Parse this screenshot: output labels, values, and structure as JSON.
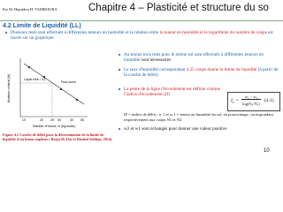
{
  "header": {
    "author": "Par Dr Hamidou H. TAMBOURA",
    "title": "Chapitre 4 – Plasticité et structure du so"
  },
  "section": {
    "heading": "4.2 Limite de Liquidité (LL)",
    "intro": [
      "Plusieurs tests sont effectués à différentes teneurs en humidité et la relation entre ",
      "la teneur en humidité et le logarithme du nombre de coups",
      " est tracée sur un graphique."
    ]
  },
  "figure": {
    "y_label": "Moisture content (%)",
    "x_label": "Number of blows, N (log scale)",
    "annotation_ll": "Liquid limit = 42",
    "annotation_curve": "Flow curve",
    "x_ticks": [
      "10",
      "20",
      "25",
      "30",
      "40",
      "50"
    ],
    "caption": "Figure 4.2 Courbe de débit pour la détermination de la limite de liquidité d'un limon argileux ( Braja M. Das et Khaled Sobhan, 2014)"
  },
  "bullets": [
    [
      "Au moins trois tests pour le même sol sont effectués à différentes teneurs en humidité",
      " sont nécessaires"
    ],
    [
      "Le taux d'humidité correspondant ",
      "à 25 coups donne la limite de liquidité",
      " (à partir de la courbe de débit)"
    ],
    [
      "La pente de la ligne d'écoulement est définie comme l'indice d'écoulement (If)"
    ],
    [
      "IF = indice de débit ; w 1 et w 1 = teneur en humidité du sol, en pourcentage, correspondant respectivement aux coups N1 et N2"
    ],
    [
      "w2 et w1 sont échangés pour donner une valeur positive"
    ]
  ],
  "formula": {
    "symbol": "I",
    "subscript": "F",
    "numerator": "w₁ − w₂",
    "denominator": "log(N₂/N₁)",
    "number": "(4.1)"
  },
  "page_number": "10"
}
